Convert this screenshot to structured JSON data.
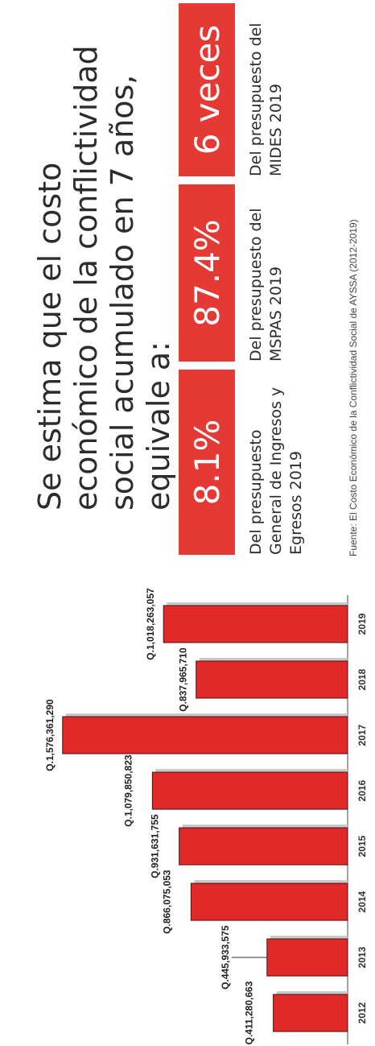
{
  "headline": "Se estima que el costo económico de la conflictividad social acumulado en 7 años, equivale a:",
  "stats": [
    {
      "value": "8.1%",
      "description": "Del presupuesto General de Ingresos y Egresos 2019",
      "color": "#e53935"
    },
    {
      "value": "87.4%",
      "description": "Del presupuesto del MSPAS 2019",
      "color": "#e53935"
    },
    {
      "value": "6 veces",
      "description": "Del presupuesto del MIDES 2019",
      "color": "#e53935"
    }
  ],
  "source": "Fuente: El Costo Económico de la Conflictividad Social de AYSSA (2012-2019)",
  "chart_data": {
    "type": "bar",
    "categories": [
      "2012",
      "2013",
      "2014",
      "2015",
      "2016",
      "2017",
      "2018",
      "2019"
    ],
    "values": [
      411280663,
      445933575,
      866075053,
      931631755,
      1079850823,
      1576361290,
      837965710,
      1018263057
    ],
    "data_labels": [
      "Q.411,280,663",
      "Q.445,933,575",
      "Q.866,075,053",
      "Q.931,631,755",
      "Q.1,079,850,823",
      "Q.1,576,361,290",
      "Q.837,965,710",
      "Q.1,018,263,057"
    ],
    "bar_color": "#e02a2a",
    "title": "",
    "xlabel": "",
    "ylabel": "",
    "ylim": [
      0,
      1700000000
    ],
    "grid": false
  }
}
